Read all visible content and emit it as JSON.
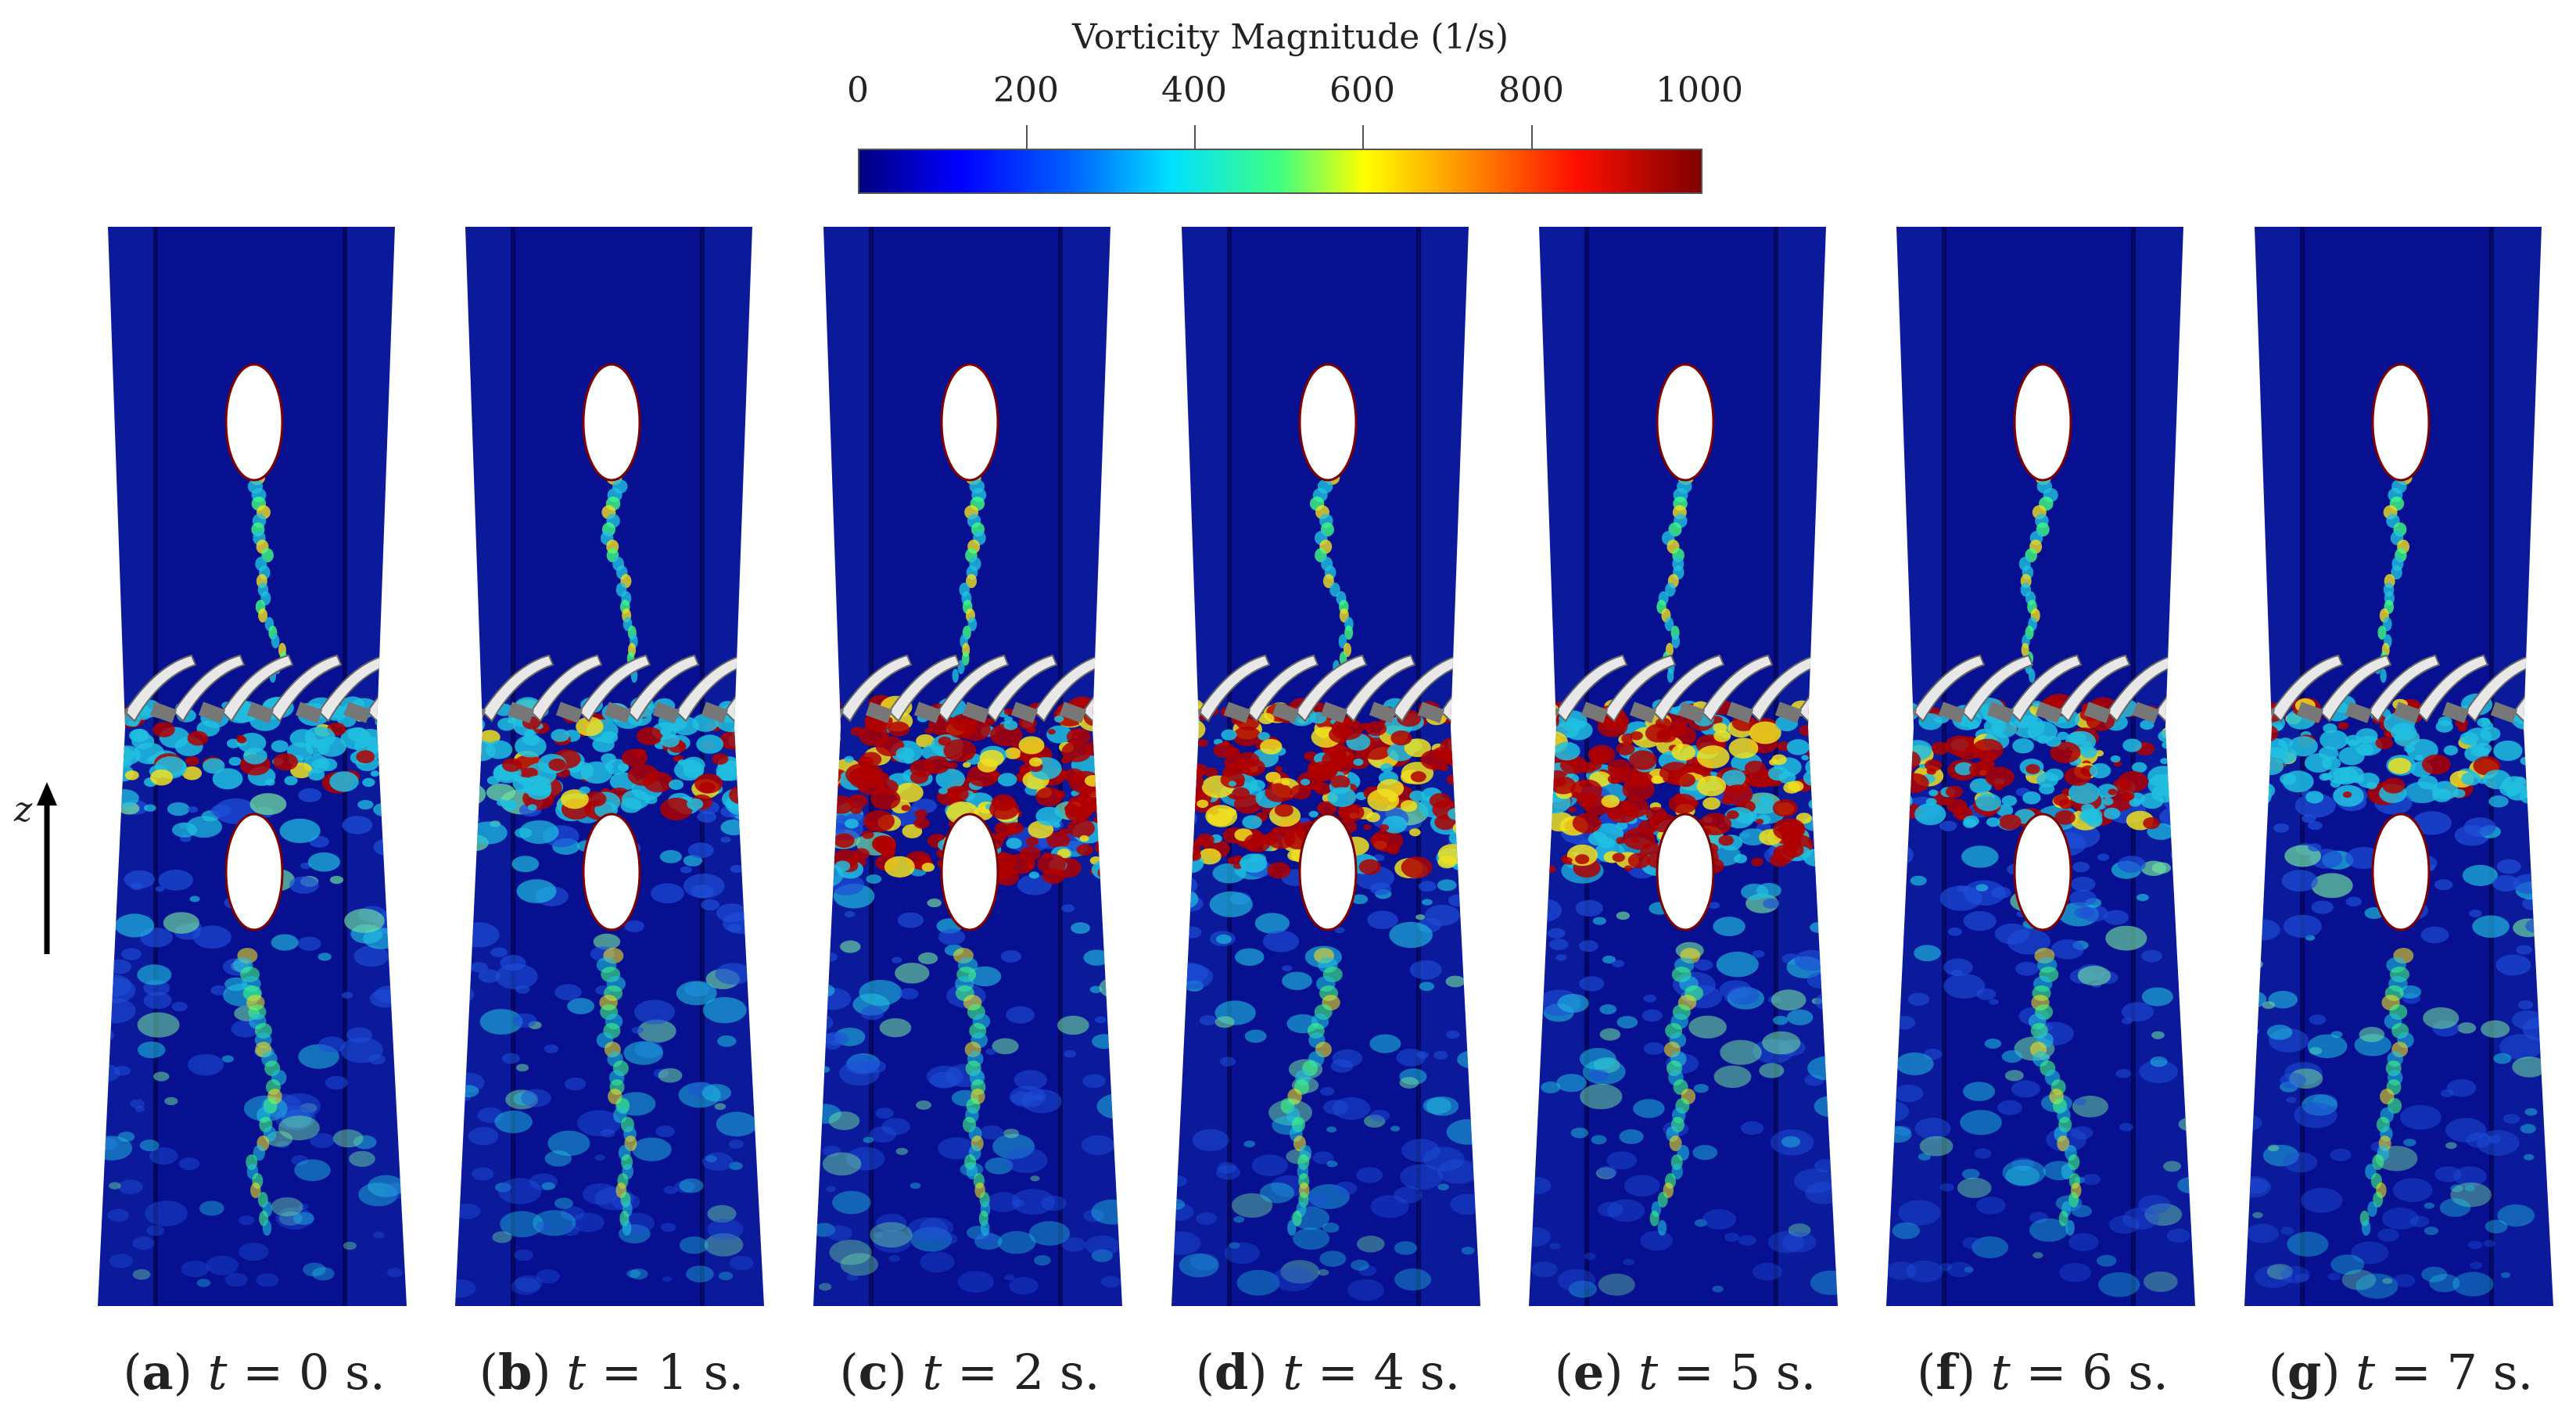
{
  "colorbar": {
    "title": "Vorticity Magnitude (1/s)",
    "ticks": [
      "0",
      "200",
      "400",
      "600",
      "800",
      "1000"
    ],
    "range": [
      0,
      1000
    ]
  },
  "axis": {
    "label": "z"
  },
  "panels": [
    {
      "letter": "a",
      "time": "0",
      "unit": "s."
    },
    {
      "letter": "b",
      "time": "1",
      "unit": "s."
    },
    {
      "letter": "c",
      "time": "2",
      "unit": "s."
    },
    {
      "letter": "d",
      "time": "4",
      "unit": "s."
    },
    {
      "letter": "e",
      "time": "5",
      "unit": "s."
    },
    {
      "letter": "f",
      "time": "6",
      "unit": "s."
    },
    {
      "letter": "g",
      "time": "7",
      "unit": "s."
    }
  ],
  "intensity": [
    0.25,
    0.45,
    0.95,
    0.9,
    0.9,
    0.55,
    0.35
  ],
  "colors": {
    "background_blue": "#0a1a9a",
    "dark_blue": "#00007f",
    "red": "#b00000",
    "yellow": "#f0e020",
    "cyan": "#20c0e0"
  }
}
